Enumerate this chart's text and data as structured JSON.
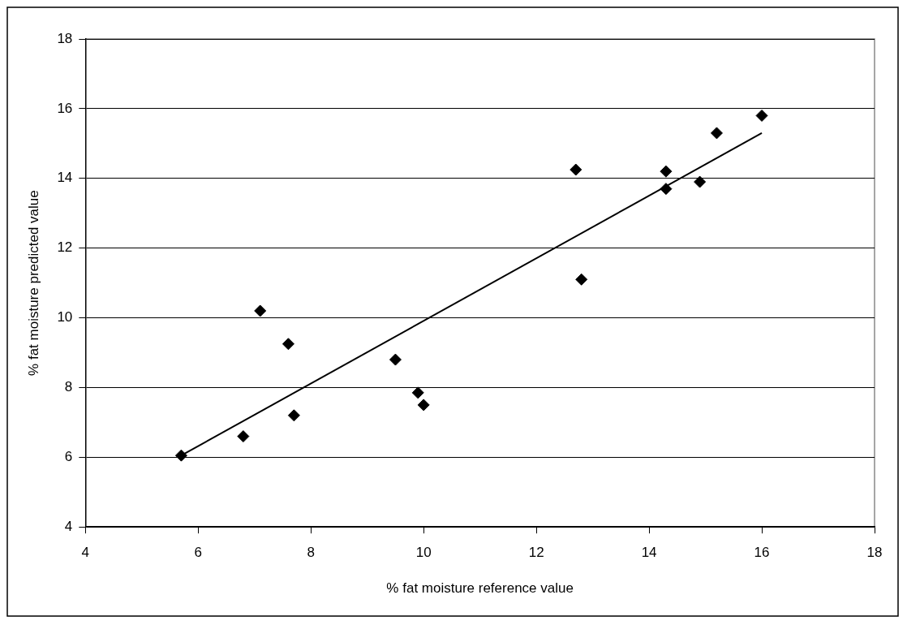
{
  "chart_data": {
    "type": "scatter",
    "xlabel": "% fat moisture reference value",
    "ylabel": "% fat moisture predicted value",
    "xlim": [
      4,
      18
    ],
    "xticks": [
      4,
      6,
      8,
      10,
      12,
      14,
      16,
      18
    ],
    "ylim": [
      4,
      18
    ],
    "yticks": [
      4,
      6,
      8,
      10,
      12,
      14,
      16,
      18
    ],
    "grid": "y",
    "legend": false,
    "series": [
      {
        "type": "scatter",
        "marker": "diamond",
        "color": "#000000",
        "x": [
          5.7,
          6.8,
          7.1,
          7.6,
          7.7,
          9.5,
          9.9,
          10.0,
          12.7,
          12.8,
          14.3,
          14.3,
          14.9,
          15.2,
          16.0
        ],
        "values": [
          6.05,
          6.6,
          10.2,
          9.25,
          7.2,
          8.8,
          7.85,
          7.5,
          14.25,
          11.1,
          14.2,
          13.7,
          13.9,
          15.3,
          15.8
        ]
      },
      {
        "type": "line",
        "marker": "none",
        "color": "#000000",
        "x": [
          5.7,
          16.0
        ],
        "values": [
          6.05,
          15.3
        ]
      }
    ]
  }
}
